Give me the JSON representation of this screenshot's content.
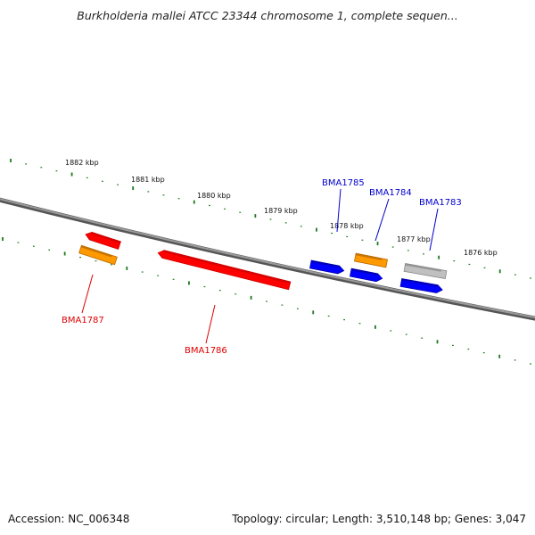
{
  "title": "Burkholderia mallei ATCC 23344 chromosome 1, complete sequen...",
  "footer": {
    "accession": "Accession: NC_006348",
    "summary": "Topology: circular; Length: 3,510,148 bp; Genes: 3,047"
  },
  "colors": {
    "backbone": "#7a7a7a",
    "tick": "#1e7a1e",
    "label_forward": "#0000cc",
    "label_reverse": "#dd0000"
  },
  "scale_ticks": [
    "1882 kbp",
    "1881 kbp",
    "1880 kbp",
    "1879 kbp",
    "1878 kbp",
    "1877 kbp",
    "1876 kbp"
  ],
  "genes": [
    {
      "label": "BMA1787",
      "color": "#ff0000",
      "shade": "#cc0000"
    },
    {
      "label": "",
      "color": "#ff9900",
      "shade": "#b86a00"
    },
    {
      "label": "BMA1786",
      "color": "#ff0000",
      "shade": "#cc0000"
    },
    {
      "label": "BMA1785",
      "color": "#0000ff",
      "shade": "#0000aa"
    },
    {
      "label": "BMA1784",
      "color": "#0000ff",
      "shade": "#0000aa"
    },
    {
      "label": "",
      "color": "#ff9900",
      "shade": "#b86a00"
    },
    {
      "label": "BMA1783",
      "color": "#0000ff",
      "shade": "#0000aa"
    },
    {
      "label": "",
      "color": "#c0c0c0",
      "shade": "#888888"
    }
  ]
}
